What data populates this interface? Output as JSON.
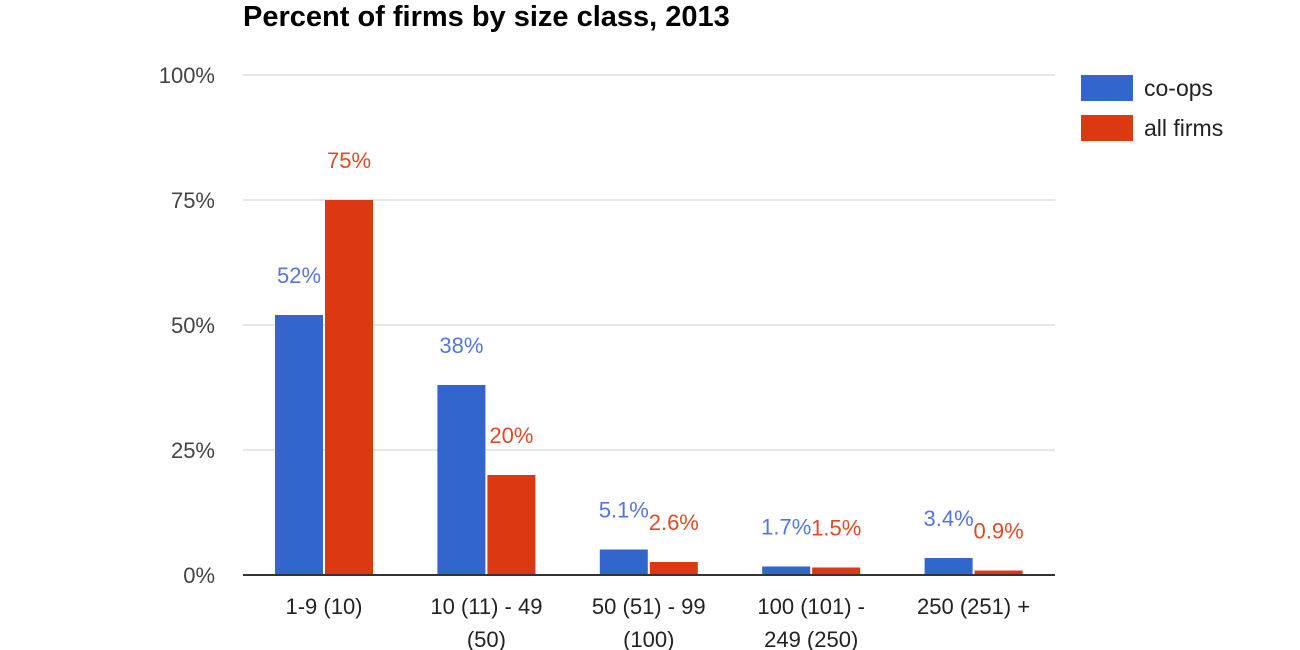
{
  "chart_data": {
    "type": "bar",
    "title": "Percent of firms by size class, 2013",
    "categories": [
      [
        "1-9 (10)"
      ],
      [
        "10 (11) - 49",
        "(50)"
      ],
      [
        "50 (51) - 99",
        "(100)"
      ],
      [
        "100 (101) -",
        "249 (250)"
      ],
      [
        "250 (251) +"
      ]
    ],
    "series": [
      {
        "name": "co-ops",
        "color": "#3366cc",
        "label_color": "#5577dd",
        "values": [
          52,
          38,
          5.1,
          1.7,
          3.4
        ],
        "labels": [
          "52%",
          "38%",
          "5.1%",
          "1.7%",
          "3.4%"
        ]
      },
      {
        "name": "all firms",
        "color": "#dc3912",
        "label_color": "#e24a25",
        "values": [
          75,
          20,
          2.6,
          1.5,
          0.9
        ],
        "labels": [
          "75%",
          "20%",
          "2.6%",
          "1.5%",
          "0.9%"
        ]
      }
    ],
    "ylim": [
      0,
      100
    ],
    "yticks": [
      0,
      25,
      50,
      75,
      100
    ],
    "ytick_labels": [
      "0%",
      "25%",
      "50%",
      "75%",
      "100%"
    ],
    "grid": true,
    "legend": "right"
  }
}
